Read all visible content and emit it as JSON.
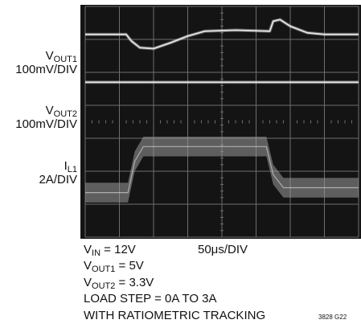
{
  "channels": [
    {
      "name_main": "V",
      "name_sub": "OUT1",
      "scale": "100mV/DIV"
    },
    {
      "name_main": "V",
      "name_sub": "OUT2",
      "scale": "100mV/DIV"
    },
    {
      "name_main": "I",
      "name_sub": "L1",
      "scale": "2A/DIV"
    }
  ],
  "timebase": "50μs/DIV",
  "conditions": {
    "vin": {
      "main": "V",
      "sub": "IN",
      "rest": " = 12V"
    },
    "vout1": {
      "main": "V",
      "sub": "OUT1",
      "rest": " = 5V"
    },
    "vout2": {
      "main": "V",
      "sub": "OUT2",
      "rest": " = 3.3V"
    },
    "load_step": "LOAD STEP = 0A TO 3A",
    "tracking": "WITH RATIOMETRIC TRACKING"
  },
  "figure_id": "3828 G22",
  "colors": {
    "screen": "#141414",
    "grid": "#6e6e6e",
    "trace": "#e4e4e4",
    "inductor_band": "#9a9a9a"
  },
  "chart_data": {
    "type": "line",
    "x_divisions": 8,
    "y_divisions": 7,
    "x_range_div": [
      0,
      8
    ],
    "y_range_div": [
      0,
      7
    ],
    "grid": true,
    "series": [
      {
        "name": "VOUT1",
        "x": [
          0,
          1.2,
          1.35,
          1.6,
          2.0,
          2.5,
          3.0,
          3.5,
          4.4,
          5.4,
          5.5,
          5.7,
          6.0,
          6.5,
          7.0,
          8.0
        ],
        "y": [
          6.15,
          6.15,
          5.95,
          5.75,
          5.72,
          5.9,
          6.1,
          6.25,
          6.28,
          6.25,
          6.55,
          6.6,
          6.4,
          6.2,
          6.15,
          6.15
        ]
      },
      {
        "name": "VOUT2",
        "x": [
          0,
          8
        ],
        "y": [
          4.7,
          4.7
        ]
      },
      {
        "name": "IL1",
        "x": [
          0,
          1.25,
          1.45,
          1.7,
          5.3,
          5.5,
          5.8,
          8.0
        ],
        "y": [
          1.35,
          1.35,
          2.3,
          2.75,
          2.75,
          1.9,
          1.5,
          1.5
        ],
        "ripple_div": 0.6
      }
    ]
  }
}
